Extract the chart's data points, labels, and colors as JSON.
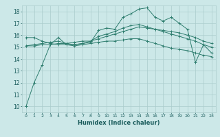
{
  "xlabel": "Humidex (Indice chaleur)",
  "ylabel": "",
  "background_color": "#cce8e8",
  "grid_color": "#aacccc",
  "line_color": "#2e7d6e",
  "xlim": [
    -0.5,
    23.5
  ],
  "ylim": [
    9.5,
    18.5
  ],
  "xticks": [
    0,
    1,
    2,
    3,
    4,
    5,
    6,
    7,
    8,
    9,
    10,
    11,
    12,
    13,
    14,
    15,
    16,
    17,
    18,
    19,
    20,
    21,
    22,
    23
  ],
  "yticks": [
    10,
    11,
    12,
    13,
    14,
    15,
    16,
    17,
    18
  ],
  "series": [
    [
      10.0,
      12.0,
      13.5,
      15.2,
      15.8,
      15.2,
      15.2,
      15.3,
      15.4,
      16.4,
      16.6,
      16.5,
      17.5,
      17.8,
      18.2,
      18.3,
      17.5,
      17.2,
      17.5,
      17.0,
      16.5,
      13.7,
      15.2,
      14.5
    ],
    [
      15.1,
      15.1,
      15.2,
      15.2,
      15.3,
      15.3,
      15.4,
      15.5,
      15.5,
      15.7,
      15.9,
      16.1,
      16.3,
      16.5,
      16.7,
      16.6,
      16.5,
      16.4,
      16.3,
      16.2,
      16.0,
      15.8,
      15.5,
      15.3
    ],
    [
      15.8,
      15.8,
      15.5,
      15.3,
      15.2,
      15.2,
      15.1,
      15.2,
      15.3,
      15.4,
      15.5,
      15.5,
      15.6,
      15.7,
      15.7,
      15.5,
      15.3,
      15.1,
      14.9,
      14.8,
      14.7,
      14.5,
      14.3,
      14.2
    ],
    [
      15.1,
      15.2,
      15.3,
      15.4,
      15.5,
      15.3,
      15.2,
      15.3,
      15.5,
      15.9,
      16.1,
      16.3,
      16.6,
      16.8,
      16.9,
      16.7,
      16.5,
      16.3,
      16.1,
      15.9,
      15.7,
      15.5,
      15.2,
      15.0
    ]
  ]
}
